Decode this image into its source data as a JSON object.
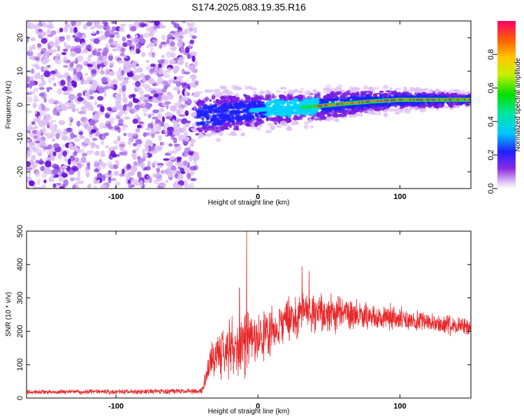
{
  "title": "S174.2025.083.19.35.R16",
  "colors": {
    "snr_line": "#e8282a",
    "background": "#ffffff",
    "colormap": [
      "#e0c0f5",
      "#7a1ce0",
      "#2020ff",
      "#00d2ff",
      "#00e060",
      "#dcf000",
      "#ff7800",
      "#ff0064"
    ]
  },
  "chart_data": [
    {
      "type": "heatmap",
      "title": "S174.2025.083.19.35.R16",
      "xlabel": "Height of straight line (km)",
      "ylabel": "Frequency (Hz)",
      "xlim": [
        -163,
        150
      ],
      "ylim": [
        -25,
        25
      ],
      "xticks": [
        "-100",
        "0",
        "100"
      ],
      "yticks": [
        "-20",
        "-10",
        "0",
        "10",
        "20"
      ],
      "colorbar": {
        "label": "Normalized spectral amplitude",
        "range": [
          0,
          1
        ],
        "ticks": [
          "0.0",
          "0.2",
          "0.4",
          "0.6",
          "0.8"
        ]
      },
      "features": {
        "noise_region_x": [
          -163,
          -43
        ],
        "signal_centerline": [
          {
            "x": -43,
            "f": -3.5
          },
          {
            "x": -20,
            "f": -2.5
          },
          {
            "x": 0,
            "f": -1.5
          },
          {
            "x": 40,
            "f": -0.5
          },
          {
            "x": 60,
            "f": 0.3
          },
          {
            "x": 80,
            "f": 1.0
          },
          {
            "x": 100,
            "f": 1.5
          },
          {
            "x": 150,
            "f": 1.5
          }
        ],
        "peak_amplitude_x": [
          40,
          150
        ]
      }
    },
    {
      "type": "line",
      "xlabel": "Height of straight line (km)",
      "ylabel": "SNR (10 * v/v)",
      "xlim": [
        -163,
        150
      ],
      "ylim": [
        0,
        500
      ],
      "xticks": [
        "-100",
        "0",
        "100"
      ],
      "yticks": [
        "0",
        "100",
        "200",
        "300",
        "400",
        "500"
      ],
      "series": [
        {
          "color": "#e8282a",
          "envelope": [
            {
              "x": -163,
              "mean": 18,
              "spread": 8
            },
            {
              "x": -40,
              "mean": 20,
              "spread": 10
            },
            {
              "x": -32,
              "mean": 120,
              "spread": 70
            },
            {
              "x": -20,
              "mean": 150,
              "spread": 110
            },
            {
              "x": -8,
              "mean": 160,
              "spread": 120
            },
            {
              "x": 0,
              "mean": 180,
              "spread": 90
            },
            {
              "x": 20,
              "mean": 230,
              "spread": 80
            },
            {
              "x": 35,
              "mean": 260,
              "spread": 80
            },
            {
              "x": 60,
              "mean": 250,
              "spread": 60
            },
            {
              "x": 90,
              "mean": 245,
              "spread": 45
            },
            {
              "x": 120,
              "mean": 225,
              "spread": 35
            },
            {
              "x": 150,
              "mean": 210,
              "spread": 30
            }
          ],
          "spikes": [
            {
              "x": -8,
              "y": 500
            },
            {
              "x": -13,
              "y": 330
            },
            {
              "x": 31,
              "y": 395
            },
            {
              "x": 36,
              "y": 380
            }
          ]
        }
      ]
    }
  ]
}
